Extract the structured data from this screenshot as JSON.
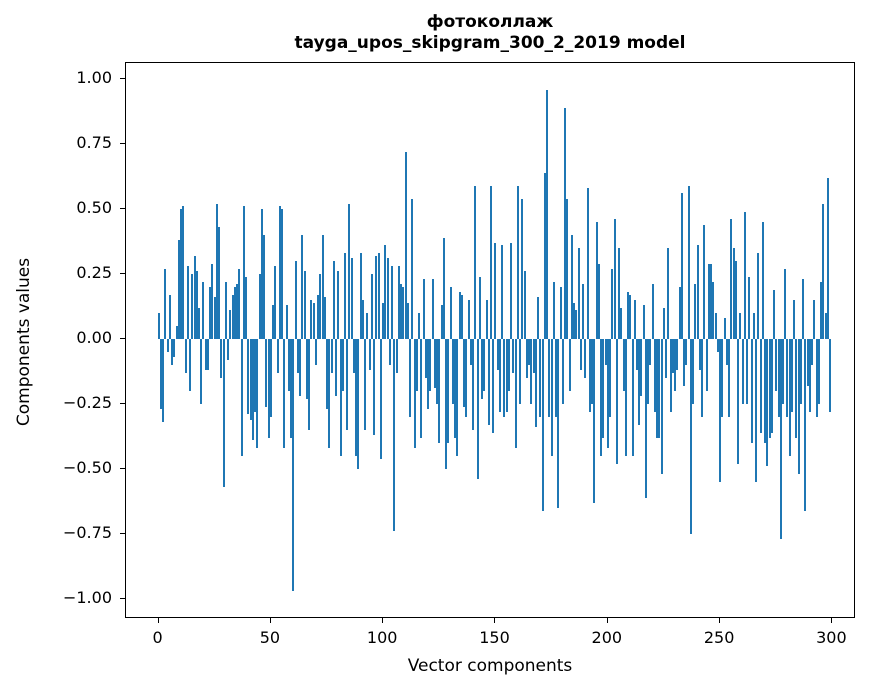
{
  "figure": {
    "title_line1": "фотоколлаж",
    "title_line2": "tayga_upos_skipgram_300_2_2019 model",
    "xlabel": "Vector components",
    "ylabel": "Components values",
    "background": "#ffffff",
    "spine_color": "#000000"
  },
  "chart_data": {
    "type": "bar",
    "title": "фотоколлаж\ntayga_upos_skipgram_300_2_2019 model",
    "xlabel": "Vector components",
    "ylabel": "Components values",
    "bar_color": "#1f77b4",
    "grid": false,
    "legend": null,
    "xlim": [
      -14.5,
      310.5
    ],
    "ylim": [
      -1.077,
      1.062
    ],
    "xticks": [
      0,
      50,
      100,
      150,
      200,
      250,
      300
    ],
    "xtick_labels": [
      "0",
      "50",
      "100",
      "150",
      "200",
      "250",
      "300"
    ],
    "ytick_values": [
      1.0,
      0.75,
      0.5,
      0.25,
      0.0,
      -0.25,
      -0.5,
      -0.75,
      -1.0
    ],
    "ytick_labels": [
      "1.00",
      "0.75",
      "0.50",
      "0.25",
      "0.00",
      "−0.25",
      "−0.50",
      "−0.75",
      "−1.00"
    ],
    "x_start": 0,
    "values": [
      0.1,
      -0.27,
      -0.32,
      0.27,
      -0.05,
      0.17,
      -0.1,
      -0.07,
      0.05,
      0.38,
      0.5,
      0.51,
      -0.13,
      0.28,
      -0.2,
      0.25,
      0.32,
      0.26,
      0.12,
      -0.25,
      0.22,
      -0.12,
      -0.12,
      0.2,
      0.29,
      0.16,
      0.52,
      0.43,
      -0.15,
      -0.57,
      0.22,
      -0.08,
      0.11,
      0.17,
      0.2,
      0.21,
      0.27,
      -0.45,
      0.51,
      0.24,
      -0.29,
      -0.31,
      -0.39,
      -0.28,
      -0.42,
      0.25,
      0.5,
      0.4,
      -0.26,
      -0.38,
      -0.3,
      0.13,
      0.28,
      -0.13,
      0.51,
      0.5,
      -0.42,
      0.13,
      -0.2,
      -0.38,
      -0.97,
      0.3,
      -0.13,
      -0.22,
      0.4,
      0.26,
      -0.23,
      -0.35,
      0.15,
      0.14,
      -0.1,
      0.17,
      0.25,
      0.4,
      0.16,
      -0.27,
      -0.42,
      -0.13,
      0.3,
      -0.22,
      0.26,
      -0.45,
      -0.2,
      0.33,
      -0.35,
      0.52,
      0.31,
      -0.13,
      -0.45,
      -0.5,
      0.33,
      0.15,
      -0.35,
      0.1,
      -0.12,
      0.25,
      -0.37,
      0.32,
      0.33,
      -0.46,
      0.14,
      0.36,
      0.31,
      -0.1,
      0.28,
      -0.74,
      -0.13,
      0.28,
      0.21,
      0.2,
      0.72,
      0.14,
      -0.3,
      0.54,
      -0.42,
      -0.2,
      0.1,
      -0.38,
      0.23,
      -0.15,
      -0.27,
      -0.2,
      0.23,
      -0.19,
      -0.25,
      -0.4,
      0.13,
      0.39,
      -0.5,
      -0.4,
      0.2,
      -0.25,
      -0.38,
      -0.45,
      0.18,
      0.17,
      -0.26,
      -0.3,
      0.15,
      -0.1,
      -0.35,
      0.59,
      -0.54,
      0.24,
      -0.23,
      -0.2,
      0.15,
      -0.33,
      0.59,
      -0.36,
      0.37,
      -0.12,
      -0.28,
      0.36,
      -0.3,
      -0.28,
      -0.2,
      0.37,
      -0.13,
      -0.42,
      0.59,
      -0.25,
      0.54,
      0.26,
      -0.15,
      -0.1,
      -0.25,
      -0.13,
      -0.34,
      0.16,
      -0.3,
      -0.66,
      0.64,
      0.96,
      -0.3,
      -0.45,
      0.22,
      -0.3,
      -0.65,
      0.2,
      -0.25,
      0.89,
      0.54,
      -0.2,
      0.4,
      0.14,
      0.11,
      0.35,
      -0.12,
      0.21,
      -0.15,
      0.58,
      -0.28,
      -0.25,
      -0.63,
      0.45,
      0.29,
      -0.45,
      -0.38,
      -0.1,
      -0.42,
      -0.3,
      0.27,
      0.46,
      -0.48,
      0.35,
      0.12,
      -0.2,
      -0.45,
      0.18,
      0.17,
      -0.45,
      0.15,
      -0.12,
      -0.33,
      -0.22,
      0.13,
      -0.61,
      -0.25,
      -0.1,
      0.21,
      -0.28,
      -0.38,
      -0.38,
      -0.52,
      0.12,
      -0.15,
      0.35,
      -0.28,
      -0.13,
      -0.2,
      -0.12,
      0.2,
      0.56,
      -0.18,
      -0.1,
      0.59,
      -0.75,
      -0.25,
      0.21,
      0.36,
      -0.12,
      -0.3,
      0.44,
      -0.2,
      0.29,
      0.29,
      0.22,
      0.1,
      -0.05,
      -0.55,
      -0.3,
      0.08,
      -0.1,
      -0.3,
      0.46,
      0.35,
      0.3,
      -0.48,
      0.1,
      -0.25,
      0.49,
      -0.25,
      0.24,
      -0.4,
      0.1,
      -0.55,
      0.33,
      -0.36,
      0.45,
      -0.4,
      -0.49,
      -0.38,
      -0.36,
      0.19,
      -0.2,
      -0.3,
      -0.77,
      -0.25,
      0.27,
      -0.3,
      -0.45,
      -0.28,
      0.15,
      -0.38,
      -0.52,
      -0.25,
      0.23,
      -0.66,
      -0.18,
      -0.28,
      -0.1,
      0.15,
      -0.3,
      -0.25,
      0.22,
      0.52,
      0.1,
      0.62,
      -0.28
    ]
  }
}
